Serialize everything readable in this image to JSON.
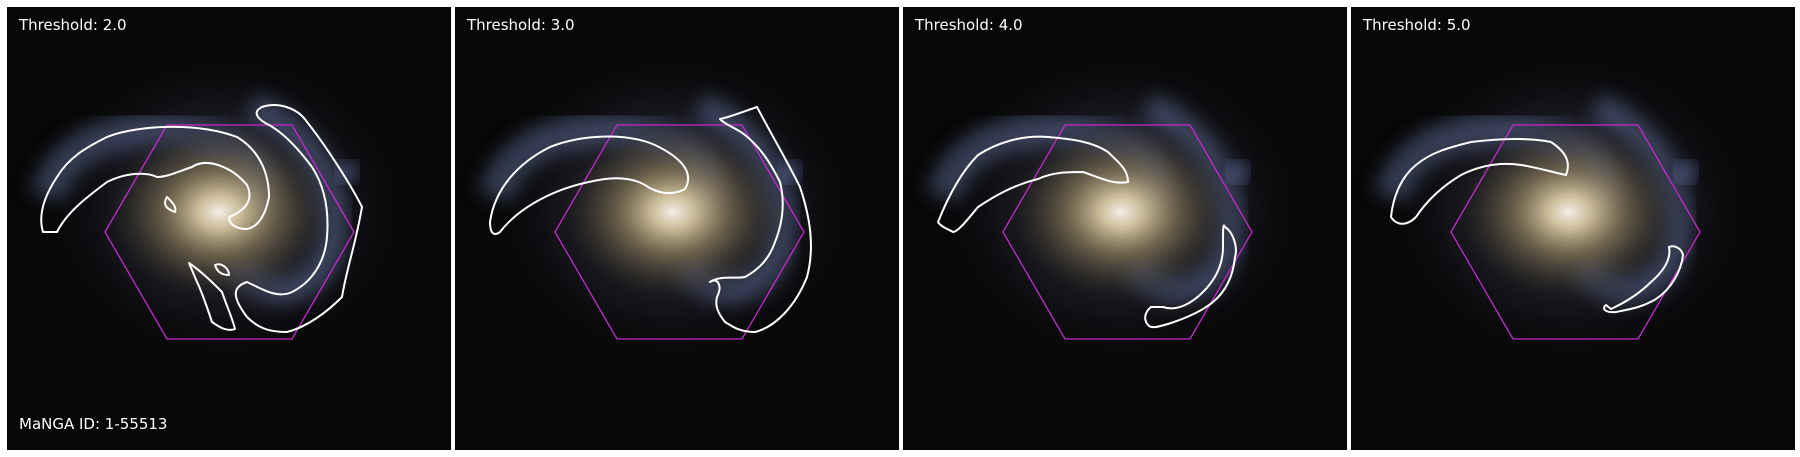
{
  "panels": [
    {
      "threshold_label": "Threshold: 2.0"
    },
    {
      "threshold_label": "Threshold: 3.0"
    },
    {
      "threshold_label": "Threshold: 4.0"
    },
    {
      "threshold_label": "Threshold: 5.0"
    }
  ],
  "manga_id_label": "MaNGA ID: 1-55513",
  "colors": {
    "background": "#070707",
    "contour": "#ffffff",
    "hexagon": "#c42ad0",
    "galaxy_core": "#c8b58a",
    "spiral_arms": "#7a88b8"
  }
}
